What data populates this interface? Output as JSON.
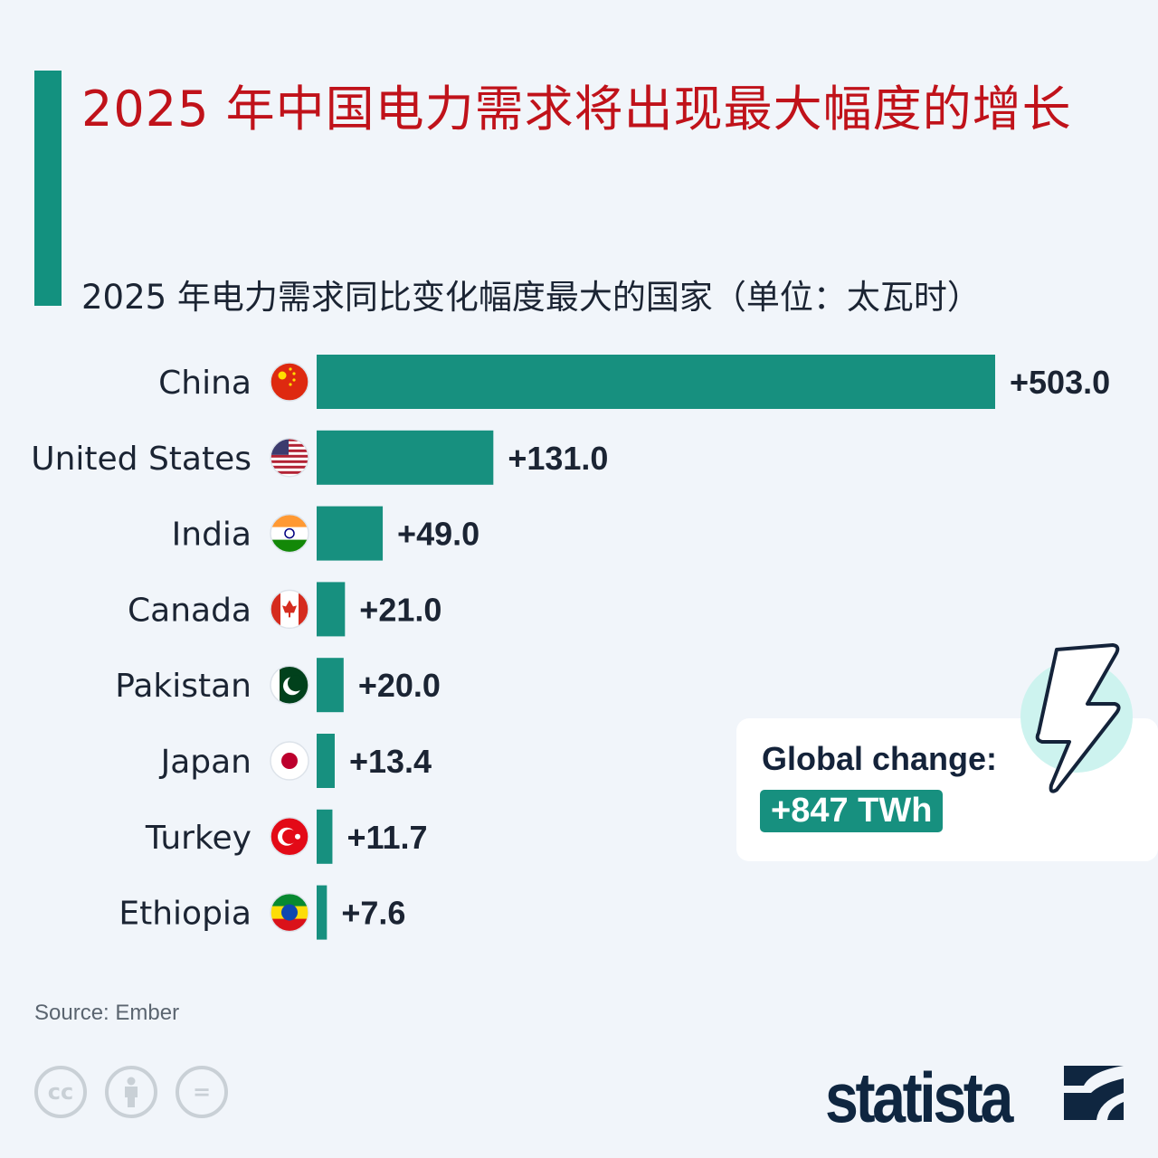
{
  "title": "2025 年中国电力需求将出现最大幅度的增长",
  "subtitle": "2025 年电力需求同比变化幅度最大的国家（单位：太瓦时）",
  "source": "Source: Ember",
  "callout": {
    "label": "Global change:",
    "value": "+847 TWh",
    "icon": "lightning-bolt-icon"
  },
  "license_icons": [
    "cc",
    "by",
    "nd"
  ],
  "license_labels": {
    "cc": "cc",
    "nd": "="
  },
  "brand": "statista",
  "colors": {
    "bar": "#17907f",
    "title": "#c0121a",
    "text": "#1b2433",
    "background": "#f1f5fa"
  },
  "chart_data": {
    "type": "bar",
    "orientation": "horizontal",
    "categories": [
      "China",
      "United States",
      "India",
      "Canada",
      "Pakistan",
      "Japan",
      "Turkey",
      "Ethiopia"
    ],
    "values": [
      503.0,
      131.0,
      49.0,
      21.0,
      20.0,
      13.4,
      11.7,
      7.6
    ],
    "data_labels": [
      "+503.0",
      "+131.0",
      "+49.0",
      "+21.0",
      "+20.0",
      "+13.4",
      "+11.7",
      "+7.6"
    ],
    "title": "2025 年中国电力需求将出现最大幅度的增长",
    "subtitle": "2025 年电力需求同比变化幅度最大的国家（单位：太瓦时）",
    "xlabel": "",
    "ylabel": "",
    "xlim": [
      0,
      503
    ],
    "grid": false,
    "legend": "none"
  }
}
